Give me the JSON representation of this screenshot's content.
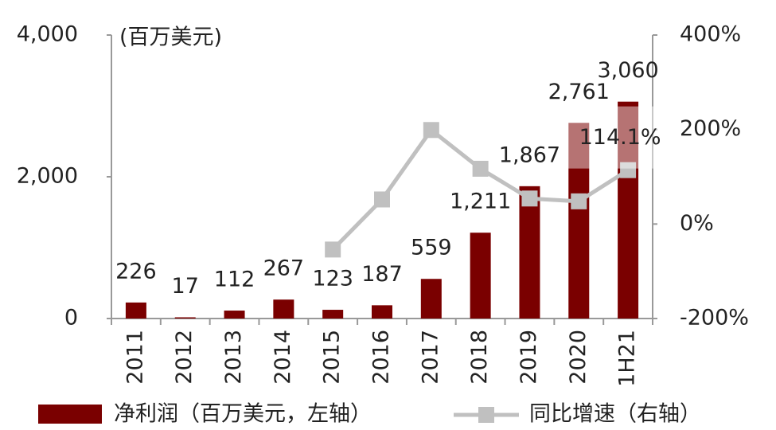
{
  "chart_data": {
    "type": "bar",
    "annotations": [
      "(百万美元)"
    ],
    "categories": [
      "2011",
      "2012",
      "2013",
      "2014",
      "2015",
      "2016",
      "2017",
      "2018",
      "2019",
      "2020",
      "1H21"
    ],
    "series": [
      {
        "name": "净利润（百万美元，左轴）",
        "type": "bar",
        "color": "#7a0000",
        "values": [
          226,
          17,
          112,
          267,
          123,
          187,
          559,
          1211,
          1867,
          2761,
          3060
        ],
        "value_labels": [
          "226",
          "17",
          "112",
          "267",
          "123",
          "187",
          "559",
          "1,211",
          "1,867",
          "2,761",
          "3,060"
        ]
      },
      {
        "name": "同比增速（右轴）",
        "type": "line",
        "axis": "y2",
        "color": "#c0c0c0",
        "values": [
          null,
          null,
          null,
          null,
          -54,
          52,
          199,
          117,
          54,
          48,
          114.1
        ],
        "value_labels": [
          null,
          null,
          null,
          null,
          null,
          null,
          null,
          null,
          null,
          null,
          "114.1%"
        ]
      }
    ],
    "ylim": [
      0,
      4000
    ],
    "yticks": [
      0,
      {
        "value": 2000,
        "label": "2,000"
      },
      {
        "value": 4000,
        "label": "4,000"
      }
    ],
    "y2lim": [
      -200,
      400
    ],
    "y2ticks": [
      {
        "value": -200,
        "label": "-200%"
      },
      {
        "value": 0,
        "label": "0%"
      },
      {
        "value": 200,
        "label": "200%"
      },
      {
        "value": 400,
        "label": "400%"
      }
    ],
    "legend": "bottom"
  }
}
